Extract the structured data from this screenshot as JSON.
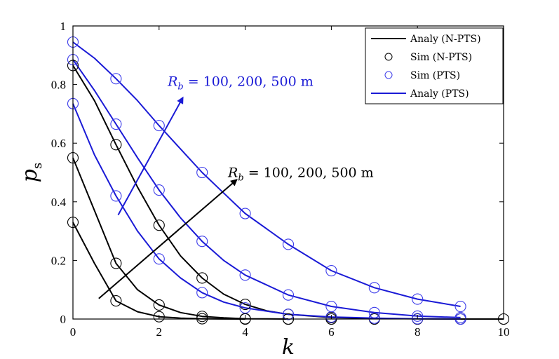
{
  "chart_data": {
    "type": "line",
    "title": "",
    "xlabel": "k",
    "ylabel": "p_s",
    "ylabel_main": "p",
    "ylabel_sub": "s",
    "xlim": [
      0,
      10
    ],
    "ylim": [
      0,
      1
    ],
    "xticks": [
      0,
      2,
      4,
      6,
      8,
      10
    ],
    "yticks": [
      0,
      0.2,
      0.4,
      0.6,
      0.8,
      1
    ],
    "xtick_labels": [
      "0",
      "2",
      "4",
      "6",
      "8",
      "10"
    ],
    "ytick_labels": [
      "0",
      "0.2",
      "0.4",
      "0.6",
      "0.8",
      "1"
    ],
    "colors": {
      "npts": "#000000",
      "pts": "#1a1ad6",
      "marker_pts": "#3b3bea"
    },
    "series": [
      {
        "name": "Analy (N-PTS) R_b=100 m",
        "group": "npts",
        "style": "line",
        "x": [
          0,
          0.5,
          1,
          1.5,
          2,
          2.5,
          3,
          3.5,
          4
        ],
        "y": [
          0.33,
          0.19,
          0.062,
          0.025,
          0.008,
          0.003,
          0.001,
          0.0003,
          0.0
        ]
      },
      {
        "name": "Analy (N-PTS) R_b=200 m",
        "group": "npts",
        "style": "line",
        "x": [
          0,
          0.5,
          1,
          1.5,
          2,
          2.5,
          3,
          3.5,
          4,
          5
        ],
        "y": [
          0.55,
          0.37,
          0.19,
          0.1,
          0.048,
          0.022,
          0.009,
          0.004,
          0.001,
          0.0
        ]
      },
      {
        "name": "Analy (N-PTS) R_b=500 m",
        "group": "npts",
        "style": "line",
        "x": [
          0,
          0.5,
          1,
          1.5,
          2,
          2.5,
          3,
          3.5,
          4,
          4.5,
          5,
          6,
          7,
          8,
          9,
          10
        ],
        "y": [
          0.865,
          0.745,
          0.595,
          0.45,
          0.32,
          0.215,
          0.14,
          0.085,
          0.05,
          0.028,
          0.016,
          0.005,
          0.002,
          0.001,
          0.0,
          0.0
        ]
      },
      {
        "name": "Analy (PTS) R_b=100 m",
        "group": "pts",
        "style": "line",
        "x": [
          0,
          0.5,
          1,
          1.5,
          2,
          2.5,
          3,
          3.5,
          4,
          5,
          6,
          7,
          8,
          9
        ],
        "y": [
          0.735,
          0.56,
          0.42,
          0.3,
          0.205,
          0.14,
          0.09,
          0.058,
          0.038,
          0.016,
          0.007,
          0.003,
          0.001,
          0.0
        ]
      },
      {
        "name": "Analy (PTS) R_b=200 m",
        "group": "pts",
        "style": "line",
        "x": [
          0,
          0.5,
          1,
          1.5,
          2,
          2.5,
          3,
          3.5,
          4,
          5,
          6,
          7,
          8,
          9
        ],
        "y": [
          0.885,
          0.78,
          0.665,
          0.55,
          0.44,
          0.345,
          0.265,
          0.2,
          0.15,
          0.082,
          0.043,
          0.022,
          0.01,
          0.005
        ]
      },
      {
        "name": "Analy (PTS) R_b=500 m",
        "group": "pts",
        "style": "line",
        "x": [
          0,
          0.5,
          1,
          1.5,
          2,
          2.5,
          3,
          3.5,
          4,
          5,
          6,
          7,
          8,
          9
        ],
        "y": [
          0.945,
          0.89,
          0.82,
          0.745,
          0.66,
          0.58,
          0.5,
          0.43,
          0.36,
          0.255,
          0.165,
          0.107,
          0.068,
          0.043
        ]
      },
      {
        "name": "Sim (N-PTS) R_b=100 m",
        "group": "npts",
        "style": "marker",
        "x": [
          0,
          1,
          2,
          3,
          4,
          5,
          6,
          7,
          8,
          9,
          10
        ],
        "y": [
          0.33,
          0.062,
          0.008,
          0.001,
          0.0,
          0.0,
          0.0,
          0.0,
          0.0,
          0.0,
          0.0
        ]
      },
      {
        "name": "Sim (N-PTS) R_b=200 m",
        "group": "npts",
        "style": "marker",
        "x": [
          0,
          1,
          2,
          3,
          4,
          5
        ],
        "y": [
          0.55,
          0.19,
          0.048,
          0.009,
          0.001,
          0.0
        ]
      },
      {
        "name": "Sim (N-PTS) R_b=500 m",
        "group": "npts",
        "style": "marker",
        "x": [
          0,
          1,
          2,
          3,
          4,
          5,
          6
        ],
        "y": [
          0.865,
          0.595,
          0.32,
          0.14,
          0.05,
          0.016,
          0.005
        ]
      },
      {
        "name": "Sim (PTS) R_b=100 m",
        "group": "pts",
        "style": "marker",
        "x": [
          0,
          1,
          2,
          3,
          4,
          5,
          6,
          7,
          8,
          9
        ],
        "y": [
          0.735,
          0.42,
          0.205,
          0.09,
          0.038,
          0.016,
          0.007,
          0.003,
          0.001,
          0.0
        ]
      },
      {
        "name": "Sim (PTS) R_b=200 m",
        "group": "pts",
        "style": "marker",
        "x": [
          0,
          1,
          2,
          3,
          4,
          5,
          6,
          7,
          8,
          9
        ],
        "y": [
          0.885,
          0.665,
          0.44,
          0.265,
          0.15,
          0.082,
          0.043,
          0.022,
          0.01,
          0.005
        ]
      },
      {
        "name": "Sim (PTS) R_b=500 m",
        "group": "pts",
        "style": "marker",
        "x": [
          0,
          1,
          2,
          3,
          4,
          5,
          6,
          7,
          8,
          9
        ],
        "y": [
          0.945,
          0.82,
          0.66,
          0.5,
          0.36,
          0.255,
          0.165,
          0.107,
          0.068,
          0.043
        ]
      }
    ],
    "legend": {
      "position": "top-right",
      "entries": [
        {
          "label": "Analy (N-PTS)",
          "symbol": "line",
          "color": "#000000"
        },
        {
          "label": "Sim (N-PTS)",
          "symbol": "circle",
          "color": "#000000"
        },
        {
          "label": "Sim (PTS)",
          "symbol": "circle",
          "color": "#3b3bea"
        },
        {
          "label": "Analy (PTS)",
          "symbol": "line",
          "color": "#1a1ad6"
        }
      ]
    },
    "annotations": [
      {
        "id": "pts",
        "var": "R",
        "sub": "b",
        "text": " = 100, 200, 500 m",
        "color": "#1a1ad6",
        "arrow_from": [
          1.05,
          0.355
        ],
        "arrow_to": [
          2.55,
          0.755
        ],
        "label_at": [
          2.2,
          0.795
        ]
      },
      {
        "id": "npts",
        "var": "R",
        "sub": "b",
        "text": " = 100, 200, 500 m",
        "color": "#000000",
        "arrow_from": [
          0.6,
          0.07
        ],
        "arrow_to": [
          3.8,
          0.475
        ],
        "label_at": [
          3.6,
          0.485
        ]
      }
    ]
  }
}
